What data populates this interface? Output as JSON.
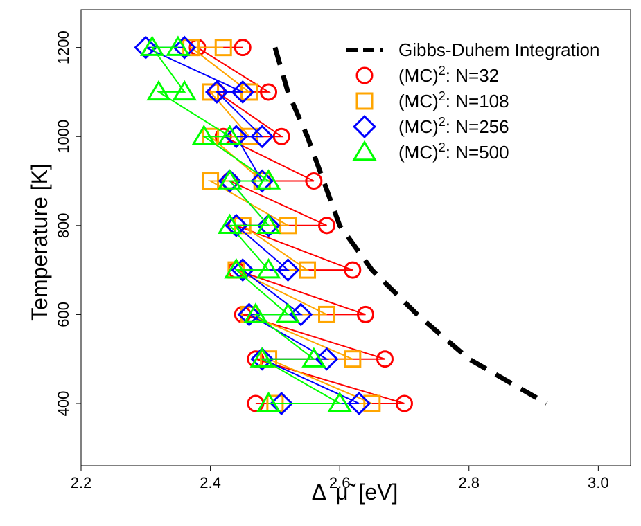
{
  "chart_data": {
    "type": "line",
    "title": "",
    "xlabel": "Δ μ̃ [eV]",
    "xlabel_parts": {
      "delta": "Δ",
      "mu": "μ̃",
      "unit": "[eV]"
    },
    "ylabel": "Temperature [K]",
    "xlim": [
      2.2,
      3.05
    ],
    "ylim": [
      260,
      1285
    ],
    "xticks": [
      2.2,
      2.4,
      2.6,
      2.8,
      3.0
    ],
    "xtick_labels": [
      "2.2",
      "2.4",
      "2.6",
      "2.8",
      "3.0"
    ],
    "yticks": [
      400,
      600,
      800,
      1000,
      1200
    ],
    "ytick_labels": [
      "400",
      "600",
      "800",
      "1000",
      "1200"
    ],
    "grid": false,
    "legend_position": "top-right",
    "series": [
      {
        "name": "Gibbs-Duhem Integration",
        "legend_main": "Gibbs-Duhem Integration",
        "legend_sup": "",
        "legend_tail": "",
        "color": "#000000",
        "style": "dashed",
        "marker": "none",
        "points": [
          [
            2.5,
            1200
          ],
          [
            2.52,
            1100
          ],
          [
            2.55,
            1000
          ],
          [
            2.575,
            900
          ],
          [
            2.6,
            800
          ],
          [
            2.65,
            700
          ],
          [
            2.72,
            600
          ],
          [
            2.8,
            500
          ],
          [
            2.92,
            400
          ]
        ]
      },
      {
        "name": "(MC)^2: N=32",
        "legend_main": "(MC)",
        "legend_sup": "2",
        "legend_tail": ": N=32",
        "color": "#ff0000",
        "style": "solid",
        "marker": "circle",
        "points": [
          [
            2.45,
            1200
          ],
          [
            2.38,
            1200
          ],
          [
            2.49,
            1100
          ],
          [
            2.41,
            1100
          ],
          [
            2.51,
            1000
          ],
          [
            2.42,
            1000
          ],
          [
            2.56,
            900
          ],
          [
            2.43,
            900
          ],
          [
            2.58,
            800
          ],
          [
            2.44,
            800
          ],
          [
            2.62,
            700
          ],
          [
            2.44,
            700
          ],
          [
            2.64,
            600
          ],
          [
            2.45,
            600
          ],
          [
            2.67,
            500
          ],
          [
            2.47,
            500
          ],
          [
            2.7,
            400
          ],
          [
            2.47,
            400
          ]
        ]
      },
      {
        "name": "(MC)^2: N=108",
        "legend_main": "(MC)",
        "legend_sup": "2",
        "legend_tail": ": N=108",
        "color": "#ffa500",
        "style": "solid",
        "marker": "square",
        "points": [
          [
            2.42,
            1200
          ],
          [
            2.37,
            1200
          ],
          [
            2.46,
            1100
          ],
          [
            2.4,
            1100
          ],
          [
            2.46,
            1000
          ],
          [
            2.4,
            1000
          ],
          [
            2.48,
            900
          ],
          [
            2.4,
            900
          ],
          [
            2.52,
            800
          ],
          [
            2.45,
            800
          ],
          [
            2.55,
            700
          ],
          [
            2.44,
            700
          ],
          [
            2.58,
            600
          ],
          [
            2.46,
            600
          ],
          [
            2.62,
            500
          ],
          [
            2.49,
            500
          ],
          [
            2.65,
            400
          ],
          [
            2.5,
            400
          ]
        ]
      },
      {
        "name": "(MC)^2: N=256",
        "legend_main": "(MC)",
        "legend_sup": "2",
        "legend_tail": ": N=256",
        "color": "#0000ff",
        "style": "solid",
        "marker": "diamond",
        "points": [
          [
            2.36,
            1200
          ],
          [
            2.3,
            1200
          ],
          [
            2.45,
            1100
          ],
          [
            2.41,
            1100
          ],
          [
            2.48,
            1000
          ],
          [
            2.44,
            1000
          ],
          [
            2.48,
            900
          ],
          [
            2.43,
            900
          ],
          [
            2.49,
            800
          ],
          [
            2.44,
            800
          ],
          [
            2.52,
            700
          ],
          [
            2.45,
            700
          ],
          [
            2.54,
            600
          ],
          [
            2.46,
            600
          ],
          [
            2.58,
            500
          ],
          [
            2.48,
            500
          ],
          [
            2.63,
            400
          ],
          [
            2.51,
            400
          ]
        ]
      },
      {
        "name": "(MC)^2: N=500",
        "legend_main": "(MC)",
        "legend_sup": "2",
        "legend_tail": ": N=500",
        "color": "#00ff00",
        "style": "solid",
        "marker": "triangle",
        "points": [
          [
            2.35,
            1200
          ],
          [
            2.31,
            1200
          ],
          [
            2.36,
            1100
          ],
          [
            2.32,
            1100
          ],
          [
            2.43,
            1000
          ],
          [
            2.39,
            1000
          ],
          [
            2.49,
            900
          ],
          [
            2.43,
            900
          ],
          [
            2.49,
            800
          ],
          [
            2.43,
            800
          ],
          [
            2.49,
            700
          ],
          [
            2.44,
            700
          ],
          [
            2.52,
            600
          ],
          [
            2.47,
            600
          ],
          [
            2.56,
            500
          ],
          [
            2.48,
            500
          ],
          [
            2.6,
            400
          ],
          [
            2.49,
            400
          ]
        ]
      }
    ]
  }
}
